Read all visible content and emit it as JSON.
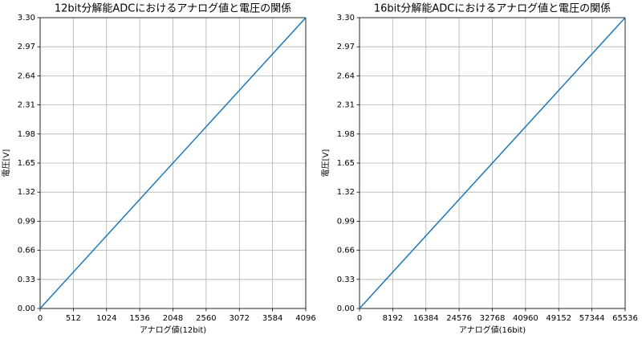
{
  "chart_data": [
    {
      "type": "line",
      "title": "12bit分解能ADCにおけるアナログ値と電圧の関係",
      "x_label": "アナログ値(12bit)",
      "y_label": "電圧[V]",
      "x": [
        0,
        4096
      ],
      "series": [
        {
          "name": "電圧",
          "color": "#1f77b4",
          "values": [
            0,
            3.3
          ]
        }
      ],
      "xlim": [
        0,
        4096
      ],
      "xticks": [
        0,
        512,
        1024,
        1536,
        2048,
        2560,
        3072,
        3584,
        4096
      ],
      "ylim": [
        0,
        3.3
      ],
      "yticks": [
        {
          "value": 0,
          "label": "0.00"
        },
        0.33,
        0.66,
        0.99,
        1.32,
        1.65,
        1.98,
        2.31,
        2.64,
        2.97,
        {
          "value": 3.3,
          "label": "3.30"
        }
      ],
      "grid": true
    },
    {
      "type": "line",
      "title": "16bit分解能ADCにおけるアナログ値と電圧の関係",
      "x_label": "アナログ値(16bit)",
      "y_label": "電圧[V]",
      "x": [
        0,
        65536
      ],
      "series": [
        {
          "name": "電圧",
          "color": "#1f77b4",
          "values": [
            0,
            3.3
          ]
        }
      ],
      "xlim": [
        0,
        65536
      ],
      "xticks": [
        0,
        8192,
        16384,
        24576,
        32768,
        40960,
        49152,
        57344,
        65536
      ],
      "ylim": [
        0,
        3.3
      ],
      "yticks": [
        {
          "value": 0,
          "label": "0.00"
        },
        0.33,
        0.66,
        0.99,
        1.32,
        1.65,
        1.98,
        2.31,
        2.64,
        2.97,
        {
          "value": 3.3,
          "label": "3.30"
        }
      ],
      "grid": true
    }
  ]
}
